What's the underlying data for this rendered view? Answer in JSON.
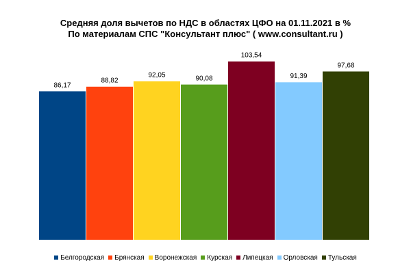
{
  "chart_data": {
    "type": "bar",
    "title": "Средняя доля вычетов по НДС в областях ЦФО на 01.11.2021 в %",
    "subtitle": "По материалам СПС \"Консультант плюс\"  ( www.consultant.ru )",
    "categories": [
      "Белгородская",
      "Брянская",
      "Воронежская",
      "Курская",
      "Липецкая",
      "Орловская",
      "Тульская"
    ],
    "values": [
      86.17,
      88.82,
      92.05,
      90.08,
      103.54,
      91.39,
      97.68
    ],
    "value_labels": [
      "86,17",
      "88,82",
      "92,05",
      "90,08",
      "103,54",
      "91,39",
      "97,68"
    ],
    "colors": [
      "#004586",
      "#ff420e",
      "#ffd320",
      "#579d1c",
      "#7e0021",
      "#83caff",
      "#314004"
    ],
    "ylim": [
      0,
      105
    ],
    "xlabel": "",
    "ylabel": "",
    "grid": false,
    "legend_position": "bottom"
  }
}
